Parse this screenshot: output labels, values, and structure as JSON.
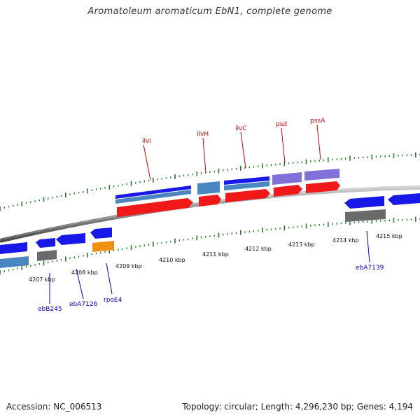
{
  "title": "Aromatoleum aromaticum EbN1, complete genome",
  "footer": {
    "accession": "Accession: NC_006513",
    "stats": "Topology: circular; Length: 4,296,230 bp; Genes: 4,194"
  },
  "colors": {
    "forward_cds": "#1818e8",
    "reverse_cds": "#f01818",
    "gene_blue": "#4a86c0",
    "gene_purple": "#8070d8",
    "gene_gray": "#6a6a6a",
    "gene_orange": "#f09010",
    "ticks": "#2a7a2a",
    "upper_labels": "#cc0000",
    "lower_labels": "#0000bb",
    "backbone": "#888888"
  },
  "scale_ticks": [
    "4207 kbp",
    "4208 kbp",
    "4209 kbp",
    "4210 kbp",
    "4211 kbp",
    "4212 kbp",
    "4213 kbp",
    "4214 kbp",
    "4215 kbp"
  ],
  "upper_labels": [
    "ilvI",
    "ilvH",
    "ilvC",
    "psd",
    "pssA"
  ],
  "lower_labels": [
    "ebB245",
    "ebA7126",
    "rpoE4",
    "ebA7139"
  ]
}
